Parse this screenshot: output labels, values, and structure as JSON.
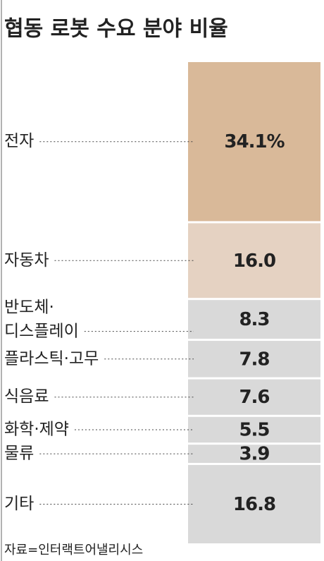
{
  "chart_data": {
    "type": "stacked-column",
    "title": "협동 로봇 수요 분야 비율",
    "categories": [
      "전자",
      "자동차",
      "반도체·\n디스플레이",
      "플라스틱·고무",
      "식음료",
      "화학·제약",
      "물류",
      "기타"
    ],
    "values": [
      34.1,
      16.0,
      8.3,
      7.8,
      7.6,
      5.5,
      3.9,
      16.8
    ],
    "value_labels": [
      "34.1%",
      "16.0",
      "8.3",
      "7.8",
      "7.6",
      "5.5",
      "3.9",
      "16.8"
    ],
    "colors": [
      "#d9b999",
      "#e5d2c2",
      "#d9d9d9",
      "#d9d9d9",
      "#d9d9d9",
      "#d9d9d9",
      "#d9d9d9",
      "#d9d9d9"
    ],
    "source": "자료=인터랙트어낼리시스"
  }
}
